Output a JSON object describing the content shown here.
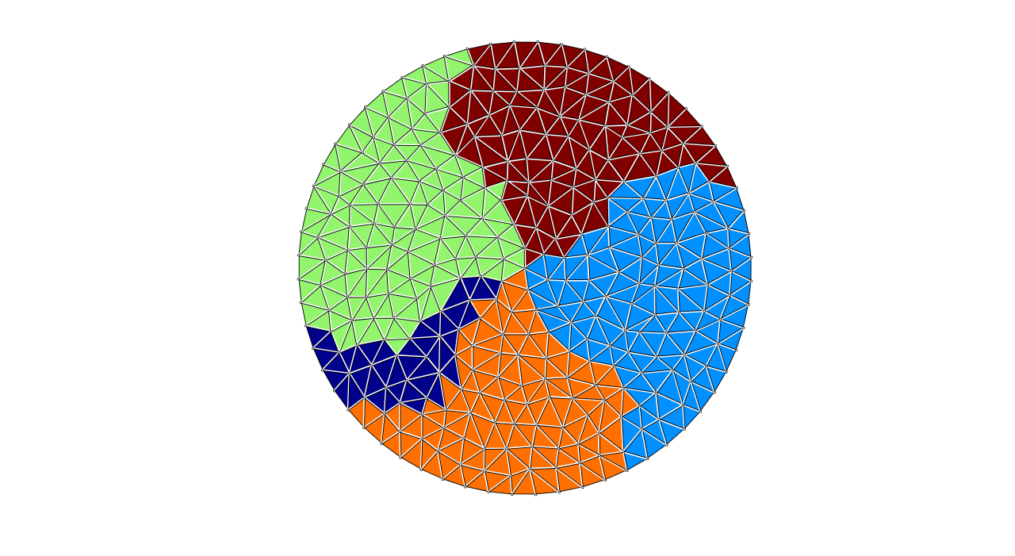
{
  "figure": {
    "type": "partitioned-triangular-mesh",
    "shape": "disk",
    "partition_count": 5,
    "mesh": {
      "rings": 10,
      "nodes_per_ring_increment": 6
    },
    "partitions": [
      {
        "id": "partition-light-green",
        "color": "#93f56e",
        "angle_start": 112,
        "angle_end": 203
      },
      {
        "id": "partition-dark-red",
        "color": "#800000",
        "angle_start": 30,
        "angle_end": 112
      },
      {
        "id": "partition-light-blue",
        "color": "#0090ff",
        "angle_start": -57,
        "angle_end": 30
      },
      {
        "id": "partition-orange",
        "color": "#ff7000",
        "angle_start": -132,
        "angle_end": -57
      },
      {
        "id": "partition-dark-blue",
        "color": "#00008b",
        "angle_start": -157,
        "angle_end": -132
      }
    ]
  }
}
